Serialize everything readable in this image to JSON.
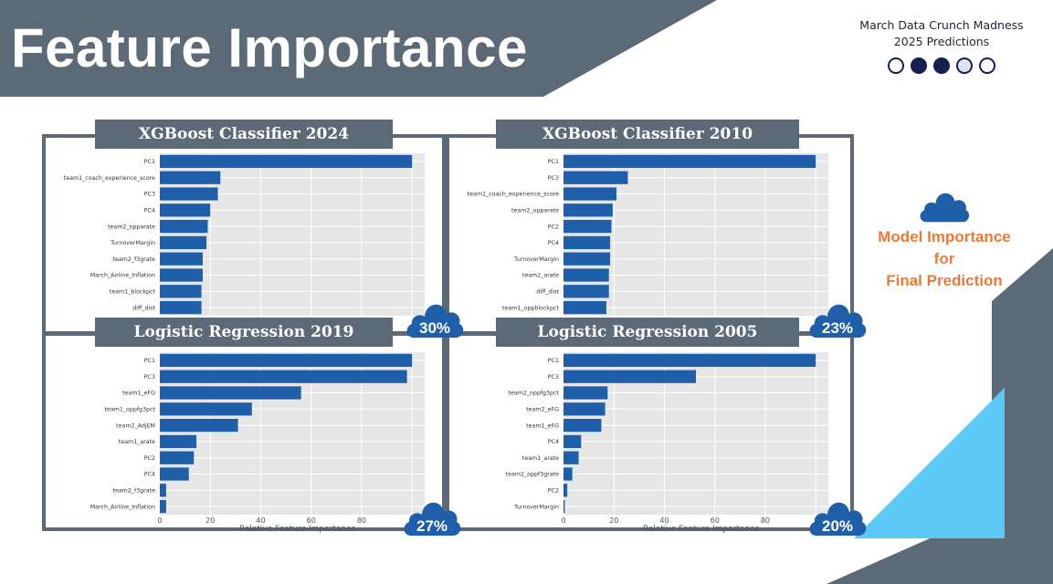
{
  "header": {
    "title": "Feature Importance",
    "brand_line1": "March Data Crunch Madness",
    "brand_line2": "2025 Predictions",
    "progress_dots": [
      "empty",
      "filled",
      "filled",
      "dotted",
      "empty"
    ]
  },
  "side_note": {
    "line1": "Model Importance",
    "line2": "for",
    "line3": "Final Prediction"
  },
  "colors": {
    "header_bg": "#5c6a78",
    "bar": "#1f5ea8",
    "plot_bg": "#e6e6e6",
    "badge": "#1f5ea8",
    "accent_text": "#e87b3c",
    "light_blue": "#5bc8f5"
  },
  "panels": [
    {
      "title": "XGBoost Classifier 2024",
      "weight": "30%"
    },
    {
      "title": "XGBoost Classifier 2010",
      "weight": "23%"
    },
    {
      "title": "Logistic Regression 2019",
      "weight": "27%"
    },
    {
      "title": "Logistic Regression 2005",
      "weight": "20%"
    }
  ],
  "chart_data": [
    {
      "type": "bar",
      "orientation": "horizontal",
      "title": "XGBoost Classifier 2024",
      "categories": [
        "PC1",
        "team1_coach_experience_score",
        "PC3",
        "PC4",
        "team2_opparate",
        "TurnoverMargin",
        "team2_f3grate",
        "March_Airline_Inflation",
        "team1_blockpct",
        "diff_dist"
      ],
      "values": [
        100,
        24,
        23,
        20,
        19,
        18.5,
        17,
        17,
        16.5,
        16.5
      ],
      "xlim": [
        0,
        105
      ],
      "xticks": [],
      "xlabel": "",
      "grid": true
    },
    {
      "type": "bar",
      "orientation": "horizontal",
      "title": "XGBoost Classifier 2010",
      "categories": [
        "PC1",
        "PC3",
        "team1_coach_experience_score",
        "team2_opparate",
        "PC2",
        "PC4",
        "TurnoverMargin",
        "team2_arate",
        "diff_dist",
        "team1_oppblockpct"
      ],
      "values": [
        100,
        25.5,
        21,
        19.5,
        19,
        18.5,
        18.5,
        18,
        18,
        17
      ],
      "xlim": [
        0,
        105
      ],
      "xticks": [],
      "xlabel": "",
      "grid": true
    },
    {
      "type": "bar",
      "orientation": "horizontal",
      "title": "Logistic Regression 2019",
      "categories": [
        "PC1",
        "PC3",
        "team1_eFG",
        "team1_oppfg3pct",
        "team2_AdjEM",
        "team1_arate",
        "PC2",
        "PC4",
        "team2_f3grate",
        "March_Airline_Inflation"
      ],
      "values": [
        100,
        98,
        56,
        36.5,
        31,
        14.5,
        13.5,
        11.5,
        2.5,
        2.5
      ],
      "xlim": [
        0,
        105
      ],
      "xticks": [
        0,
        20,
        40,
        60,
        80
      ],
      "xlabel": "Relative Feature Importance",
      "grid": true
    },
    {
      "type": "bar",
      "orientation": "horizontal",
      "title": "Logistic Regression 2005",
      "categories": [
        "PC1",
        "PC3",
        "team2_oppfg3pct",
        "team2_eFG",
        "team1_eFG",
        "PC4",
        "team1_arate",
        "team2_oppf3grate",
        "PC2",
        "TurnoverMargin"
      ],
      "values": [
        100,
        52.5,
        17.5,
        16.5,
        15,
        7,
        6,
        3.5,
        1.5,
        0.5
      ],
      "xlim": [
        0,
        105
      ],
      "xticks": [
        0,
        20,
        40,
        60,
        80
      ],
      "xlabel": "Relative Feature Importance",
      "grid": true
    }
  ]
}
